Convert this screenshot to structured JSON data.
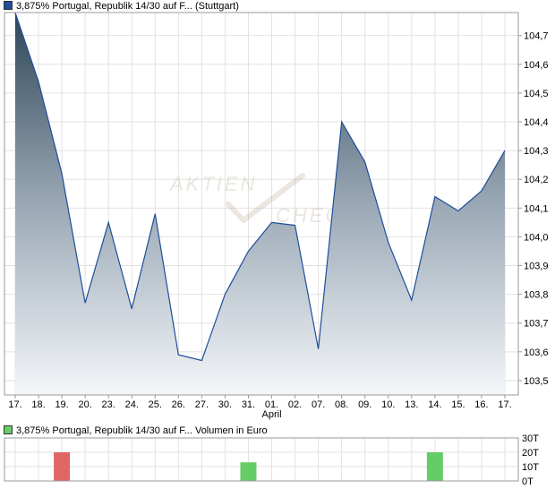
{
  "chart_data": [
    {
      "type": "area",
      "legend": "3,875% Portugal, Republik 14/30 auf F... (Stuttgart)",
      "color": "#1f4e9a",
      "x_labels": [
        "17.",
        "18.",
        "19.",
        "20.",
        "23.",
        "24.",
        "25.",
        "26.",
        "27.",
        "30.",
        "31.",
        "01.",
        "02.",
        "07.",
        "08.",
        "09.",
        "10.",
        "13.",
        "14.",
        "15.",
        "16.",
        "17."
      ],
      "month_label": "April",
      "month_label_index": 11,
      "y_ticks": [
        "103,5",
        "103,6",
        "103,7",
        "103,8",
        "103,9",
        "104,0",
        "104,1",
        "104,2",
        "104,3",
        "104,4",
        "104,5",
        "104,6",
        "104,7"
      ],
      "y_range": [
        103.45,
        104.78
      ],
      "series": [
        {
          "values": [
            104.78,
            104.54,
            104.22,
            103.77,
            104.05,
            103.75,
            104.08,
            103.59,
            103.57,
            103.8,
            103.95,
            104.05,
            104.04,
            103.61,
            104.4,
            104.26,
            103.98,
            103.78,
            104.14,
            104.09,
            104.16,
            104.3
          ]
        }
      ],
      "grid": true,
      "legend_position": "top-left"
    },
    {
      "type": "bar",
      "legend": "3,875% Portugal, Republik 14/30 auf F... Volumen in Euro",
      "legend_color": "#66cc66",
      "y_ticks": [
        "0T",
        "10T",
        "20T",
        "30T"
      ],
      "y_range": [
        0,
        30
      ],
      "bars": [
        {
          "index": 2,
          "value": 20,
          "color": "#e06666"
        },
        {
          "index": 10,
          "value": 13,
          "color": "#66cc66"
        },
        {
          "index": 18,
          "value": 20,
          "color": "#66cc66"
        }
      ],
      "grid": true
    }
  ],
  "watermark": {
    "line1": "AKTIEN",
    "line2": "CHECK"
  }
}
